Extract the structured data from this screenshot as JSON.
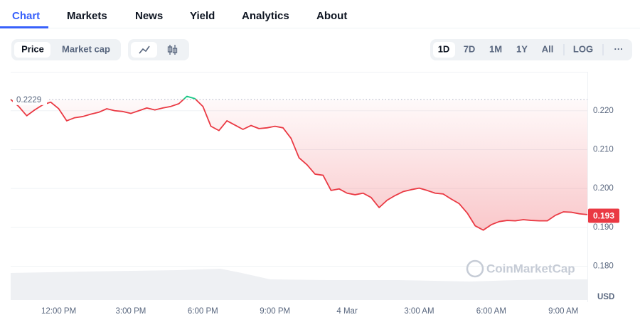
{
  "tabs": [
    "Chart",
    "Markets",
    "News",
    "Yield",
    "Analytics",
    "About"
  ],
  "toggle": [
    "Price",
    "Market cap"
  ],
  "ranges": [
    "1D",
    "7D",
    "1M",
    "1Y",
    "All"
  ],
  "scale_button": "LOG",
  "more_button": "···",
  "watermark": "CoinMarketCap",
  "chart_data": {
    "type": "line",
    "categories": [
      null,
      null,
      null,
      null,
      null,
      null,
      "12:00 PM",
      null,
      null,
      null,
      null,
      null,
      null,
      null,
      null,
      "3:00 PM",
      null,
      null,
      null,
      null,
      null,
      null,
      null,
      null,
      "6:00 PM",
      null,
      null,
      null,
      null,
      null,
      null,
      null,
      null,
      "9:00 PM",
      null,
      null,
      null,
      null,
      null,
      null,
      null,
      null,
      "4 Mar",
      null,
      null,
      null,
      null,
      null,
      null,
      null,
      null,
      "3:00 AM",
      null,
      null,
      null,
      null,
      null,
      null,
      null,
      null,
      "6:00 AM",
      null,
      null,
      null,
      null,
      null,
      null,
      null,
      null,
      "9:00 AM",
      null,
      null,
      null
    ],
    "values": [
      0.2229,
      0.2211,
      0.2187,
      0.2202,
      0.2215,
      0.2222,
      0.2205,
      0.2174,
      0.2182,
      0.2185,
      0.2191,
      0.2196,
      0.2205,
      0.22,
      0.2198,
      0.2193,
      0.22,
      0.2207,
      0.2202,
      0.2207,
      0.2211,
      0.2218,
      0.2237,
      0.2231,
      0.2211,
      0.216,
      0.2149,
      0.2174,
      0.2163,
      0.2152,
      0.2162,
      0.2154,
      0.2156,
      0.216,
      0.2156,
      0.2129,
      0.2079,
      0.2061,
      0.2037,
      0.2034,
      0.1995,
      0.1999,
      0.1988,
      0.1984,
      0.1988,
      0.1977,
      0.1951,
      0.197,
      0.1982,
      0.1992,
      0.1997,
      0.2001,
      0.1995,
      0.1988,
      0.1986,
      0.1973,
      0.1961,
      0.1937,
      0.1904,
      0.1893,
      0.1907,
      0.1915,
      0.1918,
      0.1917,
      0.192,
      0.1918,
      0.1917,
      0.1917,
      0.1931,
      0.194,
      0.1939,
      0.1935,
      0.1933
    ],
    "color": "#ea3943",
    "color_above": "#16c784",
    "reference": 0.2229,
    "last_value": 0.193,
    "currency": "USD",
    "ylim": [
      0.175,
      0.23
    ],
    "yticks": [
      {
        "value": 0.18,
        "label": "0.180"
      },
      {
        "value": 0.19,
        "label": "0.190"
      },
      {
        "value": 0.2,
        "label": "0.200"
      },
      {
        "value": 0.21,
        "label": "0.210"
      },
      {
        "value": 0.22,
        "label": "0.220"
      }
    ],
    "grid": true
  }
}
